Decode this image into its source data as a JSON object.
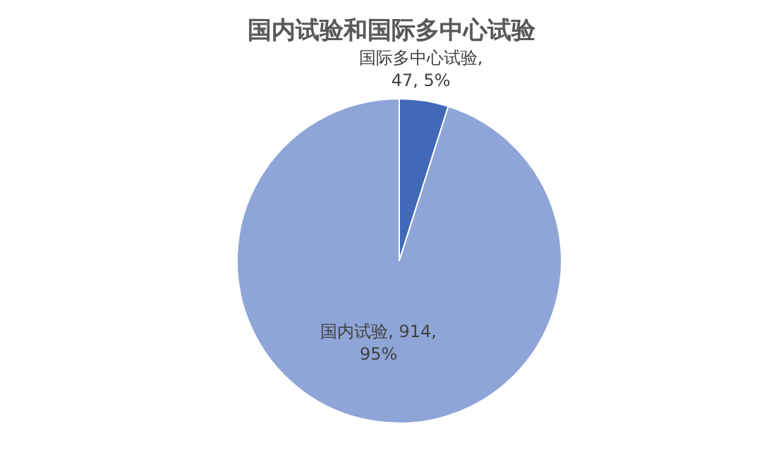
{
  "chart_data": {
    "type": "pie",
    "title": "国内试验和国际多中心试验",
    "categories": [
      "国际多中心试验",
      "国内试验"
    ],
    "values": [
      47,
      914
    ],
    "colors": [
      "#4169b8",
      "#8fa5d7"
    ],
    "value_labels": [
      ", 47, 5%",
      ", 914, 95%"
    ],
    "legend": false
  }
}
